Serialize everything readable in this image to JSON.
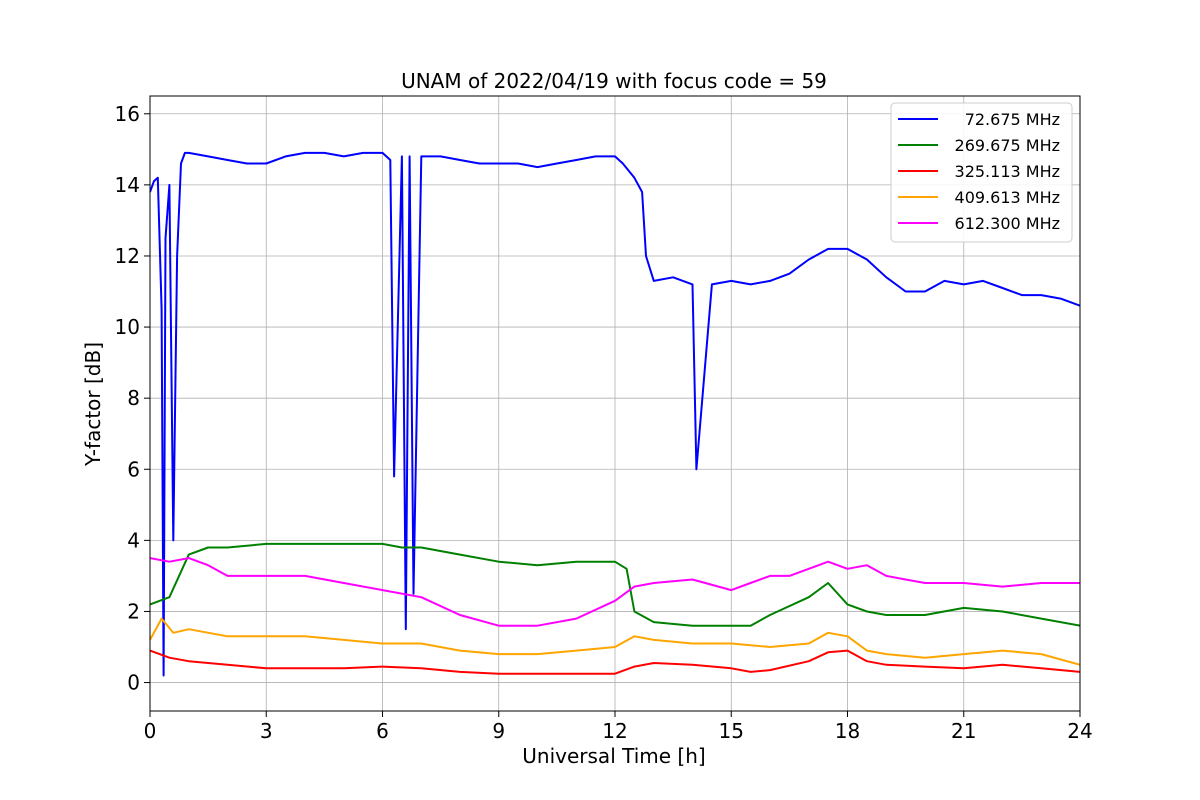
{
  "chart_data": {
    "type": "line",
    "title": "UNAM of 2022/04/19 with focus code = 59",
    "xlabel": "Universal Time [h]",
    "ylabel": "Y-factor [dB]",
    "xlim": [
      0,
      24
    ],
    "ylim": [
      -0.8,
      16.5
    ],
    "xticks": [
      0,
      3,
      6,
      9,
      12,
      15,
      18,
      21,
      24
    ],
    "yticks": [
      0,
      2,
      4,
      6,
      8,
      10,
      12,
      14,
      16
    ],
    "grid": true,
    "legend_position": "top-right",
    "series": [
      {
        "name": "72.675 MHz",
        "color": "#0000ff",
        "x": [
          0,
          0.1,
          0.2,
          0.3,
          0.35,
          0.4,
          0.5,
          0.6,
          0.7,
          0.8,
          0.9,
          1.0,
          1.5,
          2,
          2.5,
          3,
          3.5,
          4,
          4.5,
          5,
          5.5,
          6,
          6.2,
          6.3,
          6.5,
          6.6,
          6.7,
          6.8,
          7,
          7.5,
          8,
          8.5,
          9,
          9.5,
          10,
          10.5,
          11,
          11.5,
          12,
          12.2,
          12.5,
          12.7,
          12.8,
          13,
          13.5,
          14,
          14.1,
          14.5,
          15,
          15.5,
          16,
          16.5,
          17,
          17.5,
          18,
          18.5,
          19,
          19.5,
          20,
          20.5,
          21,
          21.5,
          22,
          22.5,
          23,
          23.5,
          24
        ],
        "y": [
          13.8,
          14.1,
          14.2,
          10.5,
          0.2,
          12.5,
          14.0,
          4.0,
          12.0,
          14.6,
          14.9,
          14.9,
          14.8,
          14.7,
          14.6,
          14.6,
          14.8,
          14.9,
          14.9,
          14.8,
          14.9,
          14.9,
          14.7,
          5.8,
          14.8,
          1.5,
          14.8,
          2.5,
          14.8,
          14.8,
          14.7,
          14.6,
          14.6,
          14.6,
          14.5,
          14.6,
          14.7,
          14.8,
          14.8,
          14.6,
          14.2,
          13.8,
          12.0,
          11.3,
          11.4,
          11.2,
          6.0,
          11.2,
          11.3,
          11.2,
          11.3,
          11.5,
          11.9,
          12.2,
          12.2,
          11.9,
          11.4,
          11.0,
          11.0,
          11.3,
          11.2,
          11.3,
          11.1,
          10.9,
          10.9,
          10.8,
          10.6
        ]
      },
      {
        "name": "269.675 MHz",
        "color": "#008000",
        "x": [
          0,
          0.5,
          1,
          1.5,
          2,
          3,
          4,
          5,
          6,
          6.5,
          7,
          8,
          9,
          10,
          11,
          12,
          12.3,
          12.5,
          13,
          14,
          15,
          15.5,
          16,
          17,
          17.5,
          18,
          18.5,
          19,
          20,
          21,
          22,
          23,
          24
        ],
        "y": [
          2.2,
          2.4,
          3.6,
          3.8,
          3.8,
          3.9,
          3.9,
          3.9,
          3.9,
          3.8,
          3.8,
          3.6,
          3.4,
          3.3,
          3.4,
          3.4,
          3.2,
          2.0,
          1.7,
          1.6,
          1.6,
          1.6,
          1.9,
          2.4,
          2.8,
          2.2,
          2.0,
          1.9,
          1.9,
          2.1,
          2.0,
          1.8,
          1.6
        ]
      },
      {
        "name": "325.113 MHz",
        "color": "#ff0000",
        "x": [
          0,
          0.5,
          1,
          2,
          3,
          4,
          5,
          6,
          7,
          8,
          9,
          10,
          11,
          12,
          12.5,
          13,
          14,
          15,
          15.5,
          16,
          17,
          17.5,
          18,
          18.5,
          19,
          20,
          21,
          22,
          23,
          24
        ],
        "y": [
          0.9,
          0.7,
          0.6,
          0.5,
          0.4,
          0.4,
          0.4,
          0.45,
          0.4,
          0.3,
          0.25,
          0.25,
          0.25,
          0.25,
          0.45,
          0.55,
          0.5,
          0.4,
          0.3,
          0.35,
          0.6,
          0.85,
          0.9,
          0.6,
          0.5,
          0.45,
          0.4,
          0.5,
          0.4,
          0.3
        ]
      },
      {
        "name": "409.613 MHz",
        "color": "#ffa500",
        "x": [
          0,
          0.3,
          0.6,
          1,
          2,
          3,
          4,
          5,
          6,
          7,
          8,
          9,
          10,
          11,
          12,
          12.5,
          13,
          14,
          15,
          16,
          17,
          17.5,
          18,
          18.5,
          19,
          20,
          21,
          22,
          23,
          24
        ],
        "y": [
          1.2,
          1.8,
          1.4,
          1.5,
          1.3,
          1.3,
          1.3,
          1.2,
          1.1,
          1.1,
          0.9,
          0.8,
          0.8,
          0.9,
          1.0,
          1.3,
          1.2,
          1.1,
          1.1,
          1.0,
          1.1,
          1.4,
          1.3,
          0.9,
          0.8,
          0.7,
          0.8,
          0.9,
          0.8,
          0.5
        ]
      },
      {
        "name": "612.300 MHz",
        "color": "#ff00ff",
        "x": [
          0,
          0.5,
          1,
          1.5,
          2,
          3,
          4,
          5,
          6,
          7,
          8,
          9,
          10,
          11,
          12,
          12.5,
          13,
          14,
          15,
          15.5,
          16,
          16.5,
          17,
          17.5,
          18,
          18.5,
          19,
          19.5,
          20,
          21,
          22,
          23,
          24
        ],
        "y": [
          3.5,
          3.4,
          3.5,
          3.3,
          3.0,
          3.0,
          3.0,
          2.8,
          2.6,
          2.4,
          1.9,
          1.6,
          1.6,
          1.8,
          2.3,
          2.7,
          2.8,
          2.9,
          2.6,
          2.8,
          3.0,
          3.0,
          3.2,
          3.4,
          3.2,
          3.3,
          3.0,
          2.9,
          2.8,
          2.8,
          2.7,
          2.8,
          2.8
        ]
      }
    ]
  }
}
